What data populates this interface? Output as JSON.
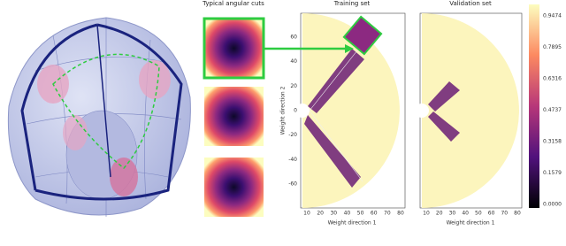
{
  "figure": {
    "cuts_title": "Typical angular cuts",
    "training": {
      "title": "Training set",
      "xlabel": "Weight direction 1",
      "ylabel": "Weight direction 2",
      "xticks": [
        "10",
        "20",
        "30",
        "40",
        "50",
        "60",
        "70",
        "80"
      ],
      "yticks": [
        "60",
        "40",
        "20",
        "0",
        "-20",
        "-40",
        "-60"
      ]
    },
    "validation": {
      "title": "Validation set",
      "xlabel": "Weight direction 1",
      "xticks": [
        "10",
        "20",
        "30",
        "40",
        "50",
        "60",
        "70",
        "80"
      ]
    },
    "colorbar": {
      "ticks": [
        "0.9474",
        "0.7895",
        "0.6316",
        "0.4737",
        "0.3158",
        "0.1579",
        "0.0000"
      ]
    }
  }
}
